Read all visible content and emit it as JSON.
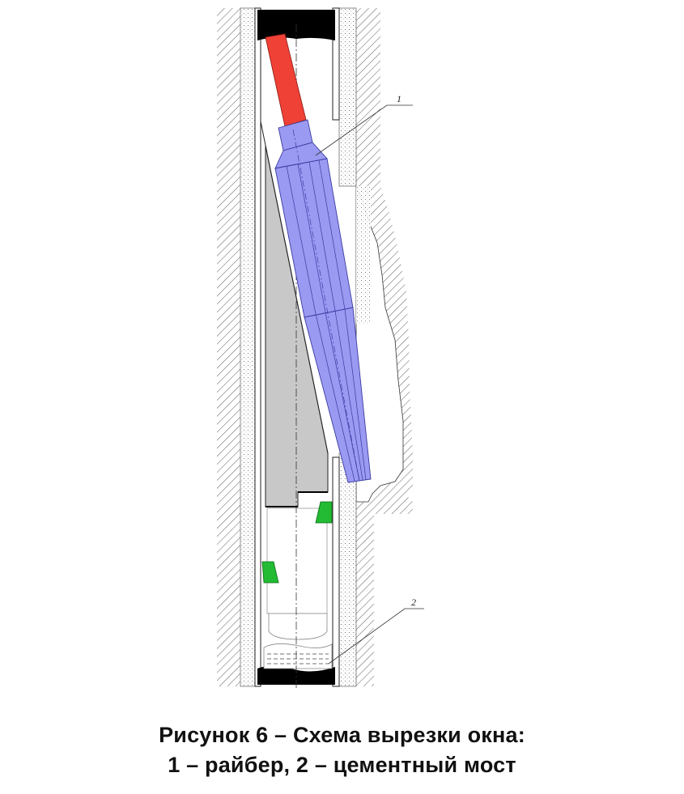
{
  "diagram": {
    "callouts": [
      {
        "number": "1"
      },
      {
        "number": "2"
      }
    ],
    "colors": {
      "whipstock_rod": "#ef4136",
      "reamer": "#9a9af2",
      "reamer_stroke": "#3a3aa0",
      "anchor_slips": "#22bb33",
      "wedge": "#c8c8c8",
      "steel": "#000000"
    }
  },
  "caption": {
    "line1": "Рисунок 6 – Схема вырезки окна:",
    "line2": "1 – райбер, 2 – цементный мост"
  }
}
